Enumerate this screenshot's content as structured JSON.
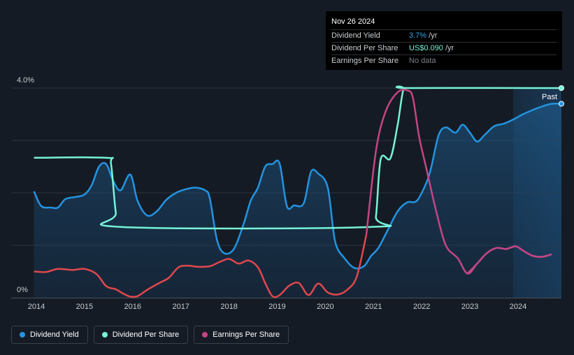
{
  "tooltip": {
    "date": "Nov 26 2024",
    "rows": [
      {
        "label": "Dividend Yield",
        "value": "3.7%",
        "unit": " /yr"
      },
      {
        "label": "Dividend Per Share",
        "value": "US$0.090",
        "unit": " /yr"
      },
      {
        "label": "Earnings Per Share",
        "value": "No data",
        "unit": ""
      }
    ]
  },
  "past_label": "Past",
  "legend": [
    {
      "label": "Dividend Yield",
      "color": "#2394e1"
    },
    {
      "label": "Dividend Per Share",
      "color": "#76f3d9"
    },
    {
      "label": "Earnings Per Share",
      "color": "#c44585"
    }
  ],
  "colors": {
    "background": "#151b24",
    "grid": "#2c333c",
    "yield_line": "#2394e1",
    "dps_line": "#76f3d9",
    "eps_line_negative": "#e0474c",
    "eps_line_positive": "#c44585"
  },
  "chart_data": {
    "type": "line",
    "x_range": [
      2013.9,
      2024.95
    ],
    "xtick_labels": [
      "2014",
      "2015",
      "2016",
      "2017",
      "2018",
      "2019",
      "2020",
      "2021",
      "2022",
      "2023",
      "2024"
    ],
    "xtick_values": [
      2014,
      2015,
      2016,
      2017,
      2018,
      2019,
      2020,
      2021,
      2022,
      2023,
      2024
    ],
    "ylim": [
      0,
      4.0
    ],
    "ytick_labels": [
      "4.0%",
      "0%"
    ],
    "ytick_values": [
      4.0,
      0
    ],
    "past_region_start": 2023.9,
    "series": [
      {
        "name": "Dividend Yield",
        "unit": "%",
        "fill": true,
        "points": [
          [
            2013.95,
            2.03
          ],
          [
            2014.1,
            1.75
          ],
          [
            2014.3,
            1.72
          ],
          [
            2014.45,
            1.72
          ],
          [
            2014.6,
            1.88
          ],
          [
            2014.8,
            1.92
          ],
          [
            2015.0,
            1.97
          ],
          [
            2015.15,
            2.15
          ],
          [
            2015.3,
            2.5
          ],
          [
            2015.45,
            2.55
          ],
          [
            2015.6,
            2.22
          ],
          [
            2015.75,
            2.05
          ],
          [
            2015.95,
            2.35
          ],
          [
            2016.1,
            1.85
          ],
          [
            2016.3,
            1.57
          ],
          [
            2016.5,
            1.65
          ],
          [
            2016.7,
            1.87
          ],
          [
            2016.9,
            2.0
          ],
          [
            2017.1,
            2.07
          ],
          [
            2017.3,
            2.1
          ],
          [
            2017.5,
            2.05
          ],
          [
            2017.6,
            1.9
          ],
          [
            2017.75,
            1.1
          ],
          [
            2017.9,
            0.85
          ],
          [
            2018.1,
            0.93
          ],
          [
            2018.3,
            1.4
          ],
          [
            2018.45,
            1.85
          ],
          [
            2018.6,
            2.1
          ],
          [
            2018.75,
            2.5
          ],
          [
            2018.9,
            2.55
          ],
          [
            2019.05,
            2.56
          ],
          [
            2019.2,
            1.75
          ],
          [
            2019.35,
            1.76
          ],
          [
            2019.55,
            1.8
          ],
          [
            2019.7,
            2.4
          ],
          [
            2019.85,
            2.37
          ],
          [
            2020.05,
            2.1
          ],
          [
            2020.2,
            1.08
          ],
          [
            2020.4,
            0.75
          ],
          [
            2020.6,
            0.57
          ],
          [
            2020.8,
            0.6
          ],
          [
            2020.95,
            0.8
          ],
          [
            2021.1,
            0.95
          ],
          [
            2021.3,
            1.3
          ],
          [
            2021.5,
            1.65
          ],
          [
            2021.7,
            1.82
          ],
          [
            2021.9,
            1.85
          ],
          [
            2022.1,
            2.2
          ],
          [
            2022.2,
            2.5
          ],
          [
            2022.35,
            3.1
          ],
          [
            2022.5,
            3.25
          ],
          [
            2022.7,
            3.15
          ],
          [
            2022.85,
            3.3
          ],
          [
            2023.0,
            3.15
          ],
          [
            2023.15,
            2.98
          ],
          [
            2023.3,
            3.1
          ],
          [
            2023.5,
            3.27
          ],
          [
            2023.7,
            3.32
          ],
          [
            2023.9,
            3.4
          ],
          [
            2024.1,
            3.5
          ],
          [
            2024.3,
            3.58
          ],
          [
            2024.5,
            3.65
          ],
          [
            2024.7,
            3.7
          ],
          [
            2024.9,
            3.7
          ]
        ]
      },
      {
        "name": "Dividend Per Share",
        "unit": "US$",
        "points": [
          [
            2013.95,
            2.67
          ],
          [
            2015.45,
            2.67
          ],
          [
            2015.55,
            2.55
          ],
          [
            2015.65,
            1.62
          ],
          [
            2015.75,
            1.35
          ],
          [
            2020.95,
            1.35
          ],
          [
            2021.05,
            1.55
          ],
          [
            2021.15,
            2.65
          ],
          [
            2021.35,
            2.66
          ],
          [
            2021.5,
            3.3
          ],
          [
            2021.62,
            3.97
          ],
          [
            2021.75,
            4.0
          ],
          [
            2024.95,
            4.0
          ]
        ]
      },
      {
        "name": "Earnings Per Share",
        "unit": "US$",
        "points": [
          [
            2013.95,
            0.5
          ],
          [
            2014.2,
            0.49
          ],
          [
            2014.45,
            0.55
          ],
          [
            2014.75,
            0.53
          ],
          [
            2015.0,
            0.55
          ],
          [
            2015.25,
            0.45
          ],
          [
            2015.45,
            0.22
          ],
          [
            2015.65,
            0.16
          ],
          [
            2015.8,
            0.08
          ],
          [
            2015.95,
            0.02
          ],
          [
            2016.1,
            0.03
          ],
          [
            2016.3,
            0.15
          ],
          [
            2016.55,
            0.28
          ],
          [
            2016.75,
            0.38
          ],
          [
            2016.95,
            0.58
          ],
          [
            2017.15,
            0.61
          ],
          [
            2017.35,
            0.59
          ],
          [
            2017.6,
            0.6
          ],
          [
            2017.8,
            0.68
          ],
          [
            2018.0,
            0.74
          ],
          [
            2018.2,
            0.65
          ],
          [
            2018.4,
            0.71
          ],
          [
            2018.6,
            0.58
          ],
          [
            2018.75,
            0.28
          ],
          [
            2018.9,
            0.03
          ],
          [
            2019.05,
            0.05
          ],
          [
            2019.25,
            0.23
          ],
          [
            2019.45,
            0.28
          ],
          [
            2019.65,
            0.05
          ],
          [
            2019.85,
            0.27
          ],
          [
            2020.05,
            0.1
          ],
          [
            2020.25,
            0.06
          ],
          [
            2020.45,
            0.15
          ],
          [
            2020.65,
            0.4
          ],
          [
            2020.85,
            1.2
          ],
          [
            2021.05,
            2.8
          ],
          [
            2021.25,
            3.55
          ],
          [
            2021.5,
            3.92
          ],
          [
            2021.72,
            3.95
          ],
          [
            2021.82,
            3.8
          ],
          [
            2021.95,
            3.05
          ],
          [
            2022.1,
            2.45
          ],
          [
            2022.3,
            1.65
          ],
          [
            2022.5,
            1.0
          ],
          [
            2022.75,
            0.75
          ],
          [
            2022.95,
            0.46
          ],
          [
            2023.15,
            0.65
          ],
          [
            2023.35,
            0.85
          ],
          [
            2023.55,
            0.95
          ],
          [
            2023.75,
            0.93
          ],
          [
            2023.95,
            0.98
          ],
          [
            2024.1,
            0.9
          ],
          [
            2024.3,
            0.8
          ],
          [
            2024.5,
            0.78
          ],
          [
            2024.7,
            0.83
          ]
        ]
      }
    ]
  }
}
